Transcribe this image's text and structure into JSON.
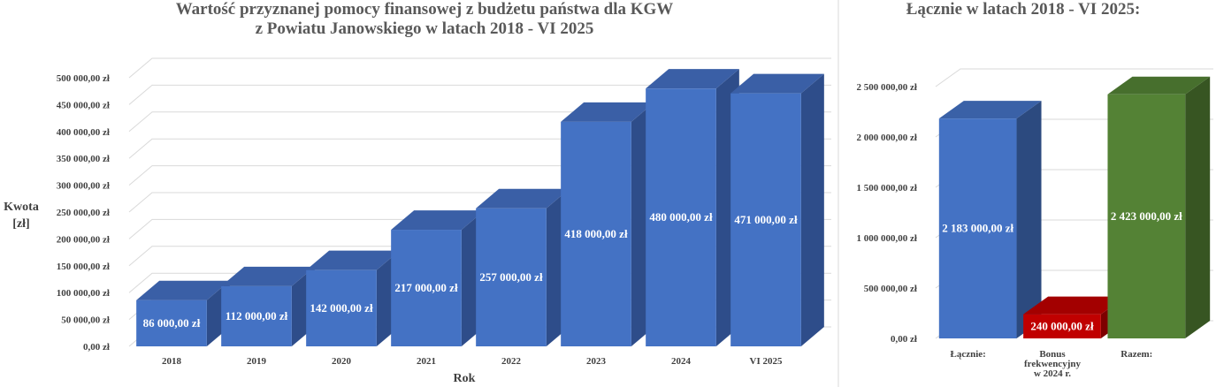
{
  "chart_data": [
    {
      "type": "bar",
      "title": "Wartość przyznanej pomocy finansowej z budżetu państwa dla KGW\nz Powiatu Janowskiego w latach 2018 - VI 2025",
      "xlabel": "Rok",
      "ylabel": "Kwota\n[zł]",
      "categories": [
        "2018",
        "2019",
        "2020",
        "2021",
        "2022",
        "2023",
        "2024",
        "VI 2025"
      ],
      "values": [
        86000,
        112000,
        142000,
        217000,
        257000,
        418000,
        480000,
        471000
      ],
      "data_labels": [
        "86 000,00 zł",
        "112 000,00 zł",
        "142 000,00 zł",
        "217 000,00 zł",
        "257 000,00 zł",
        "418 000,00 zł",
        "480 000,00 zł",
        "471 000,00 zł"
      ],
      "ylim": [
        0,
        500000
      ],
      "yticks": [
        0,
        50000,
        100000,
        150000,
        200000,
        250000,
        300000,
        350000,
        400000,
        450000,
        500000
      ],
      "ytick_labels": [
        "0,00 zł",
        "50 000,00 zł",
        "100 000,00 zł",
        "150 000,00 zł",
        "200 000,00 zł",
        "250 000,00 zł",
        "300 000,00 zł",
        "350 000,00 zł",
        "400 000,00 zł",
        "450 000,00 zł",
        "500 000,00 zł"
      ],
      "grid": true,
      "style": "3d",
      "colors": {
        "bar_front": "#4472c4",
        "bar_side": "#2e4d8a",
        "bar_top": "#3a5fa6"
      }
    },
    {
      "type": "bar",
      "title": "Łącznie w latach 2018 - VI 2025:",
      "categories": [
        "Łącznie:",
        "Bonus\nfrekwencyjny\nw 2024 r.",
        "Razem:"
      ],
      "values": [
        2183000,
        240000,
        2423000
      ],
      "data_labels": [
        "2 183 000,00 zł",
        "240 000,00 zł",
        "2 423 000,00 zł"
      ],
      "ylim": [
        0,
        2500000
      ],
      "yticks": [
        0,
        500000,
        1000000,
        1500000,
        2000000,
        2500000
      ],
      "ytick_labels": [
        "0,00 zł",
        "500 000,00 zł",
        "1 000 000,00 zł",
        "1 500 000,00 zł",
        "2 000 000,00 zł",
        "2 500 000,00 zł"
      ],
      "grid": true,
      "style": "3d",
      "colors": [
        "#4472c4",
        "#c00000",
        "#548235"
      ]
    }
  ]
}
